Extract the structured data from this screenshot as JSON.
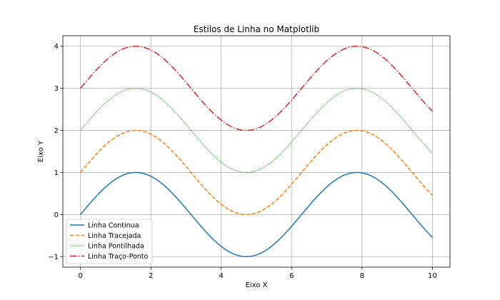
{
  "chart_data": {
    "type": "line",
    "title": "Estilos de Linha no Matplotlib",
    "xlabel": "Eixo X",
    "ylabel": "Eixo Y",
    "xlim": [
      -0.5,
      10.5
    ],
    "ylim": [
      -1.25,
      4.25
    ],
    "xticks": [
      0,
      2,
      4,
      6,
      8,
      10
    ],
    "yticks": [
      -1,
      0,
      1,
      2,
      3,
      4
    ],
    "ytick_labels": [
      "−1",
      "0",
      "1",
      "2",
      "3",
      "4"
    ],
    "grid": true,
    "legend_position": "lower-left",
    "function": "sin(x) + offset",
    "x": [
      0,
      0.5,
      1,
      1.5,
      2,
      2.5,
      3,
      3.5,
      4,
      4.5,
      5,
      5.5,
      6,
      6.5,
      7,
      7.5,
      8,
      8.5,
      9,
      9.5,
      10
    ],
    "series": [
      {
        "name": "Linha Contínua",
        "style": "solid",
        "color": "#1f77b4",
        "offset": 0,
        "values": [
          0,
          0.479,
          0.841,
          0.997,
          0.909,
          0.598,
          0.141,
          -0.351,
          -0.757,
          -0.978,
          -0.959,
          -0.706,
          -0.279,
          0.215,
          0.657,
          0.938,
          0.989,
          0.798,
          0.412,
          -0.075,
          -0.544
        ]
      },
      {
        "name": "Linha Tracejada",
        "style": "dashed",
        "color": "#ff7f0e",
        "offset": 1,
        "values": [
          1,
          1.479,
          1.841,
          1.997,
          1.909,
          1.598,
          1.141,
          0.649,
          0.243,
          0.022,
          0.041,
          0.294,
          0.721,
          1.215,
          1.657,
          1.938,
          1.989,
          1.798,
          1.412,
          0.925,
          0.456
        ]
      },
      {
        "name": "Linha Pontilhada",
        "style": "dotted",
        "color": "#2ca02c",
        "offset": 2,
        "values": [
          2,
          2.479,
          2.841,
          2.997,
          2.909,
          2.598,
          2.141,
          1.649,
          1.243,
          1.022,
          1.041,
          1.294,
          1.721,
          2.215,
          2.657,
          2.938,
          2.989,
          2.798,
          2.412,
          1.925,
          1.456
        ]
      },
      {
        "name": "Linha Traço-Ponto",
        "style": "dashdot",
        "color": "#d62728",
        "offset": 3,
        "values": [
          3,
          3.479,
          3.841,
          3.997,
          3.909,
          3.598,
          3.141,
          2.649,
          2.243,
          2.022,
          2.041,
          2.294,
          2.721,
          3.215,
          3.657,
          3.938,
          3.989,
          3.798,
          3.412,
          2.925,
          2.456
        ]
      }
    ]
  }
}
